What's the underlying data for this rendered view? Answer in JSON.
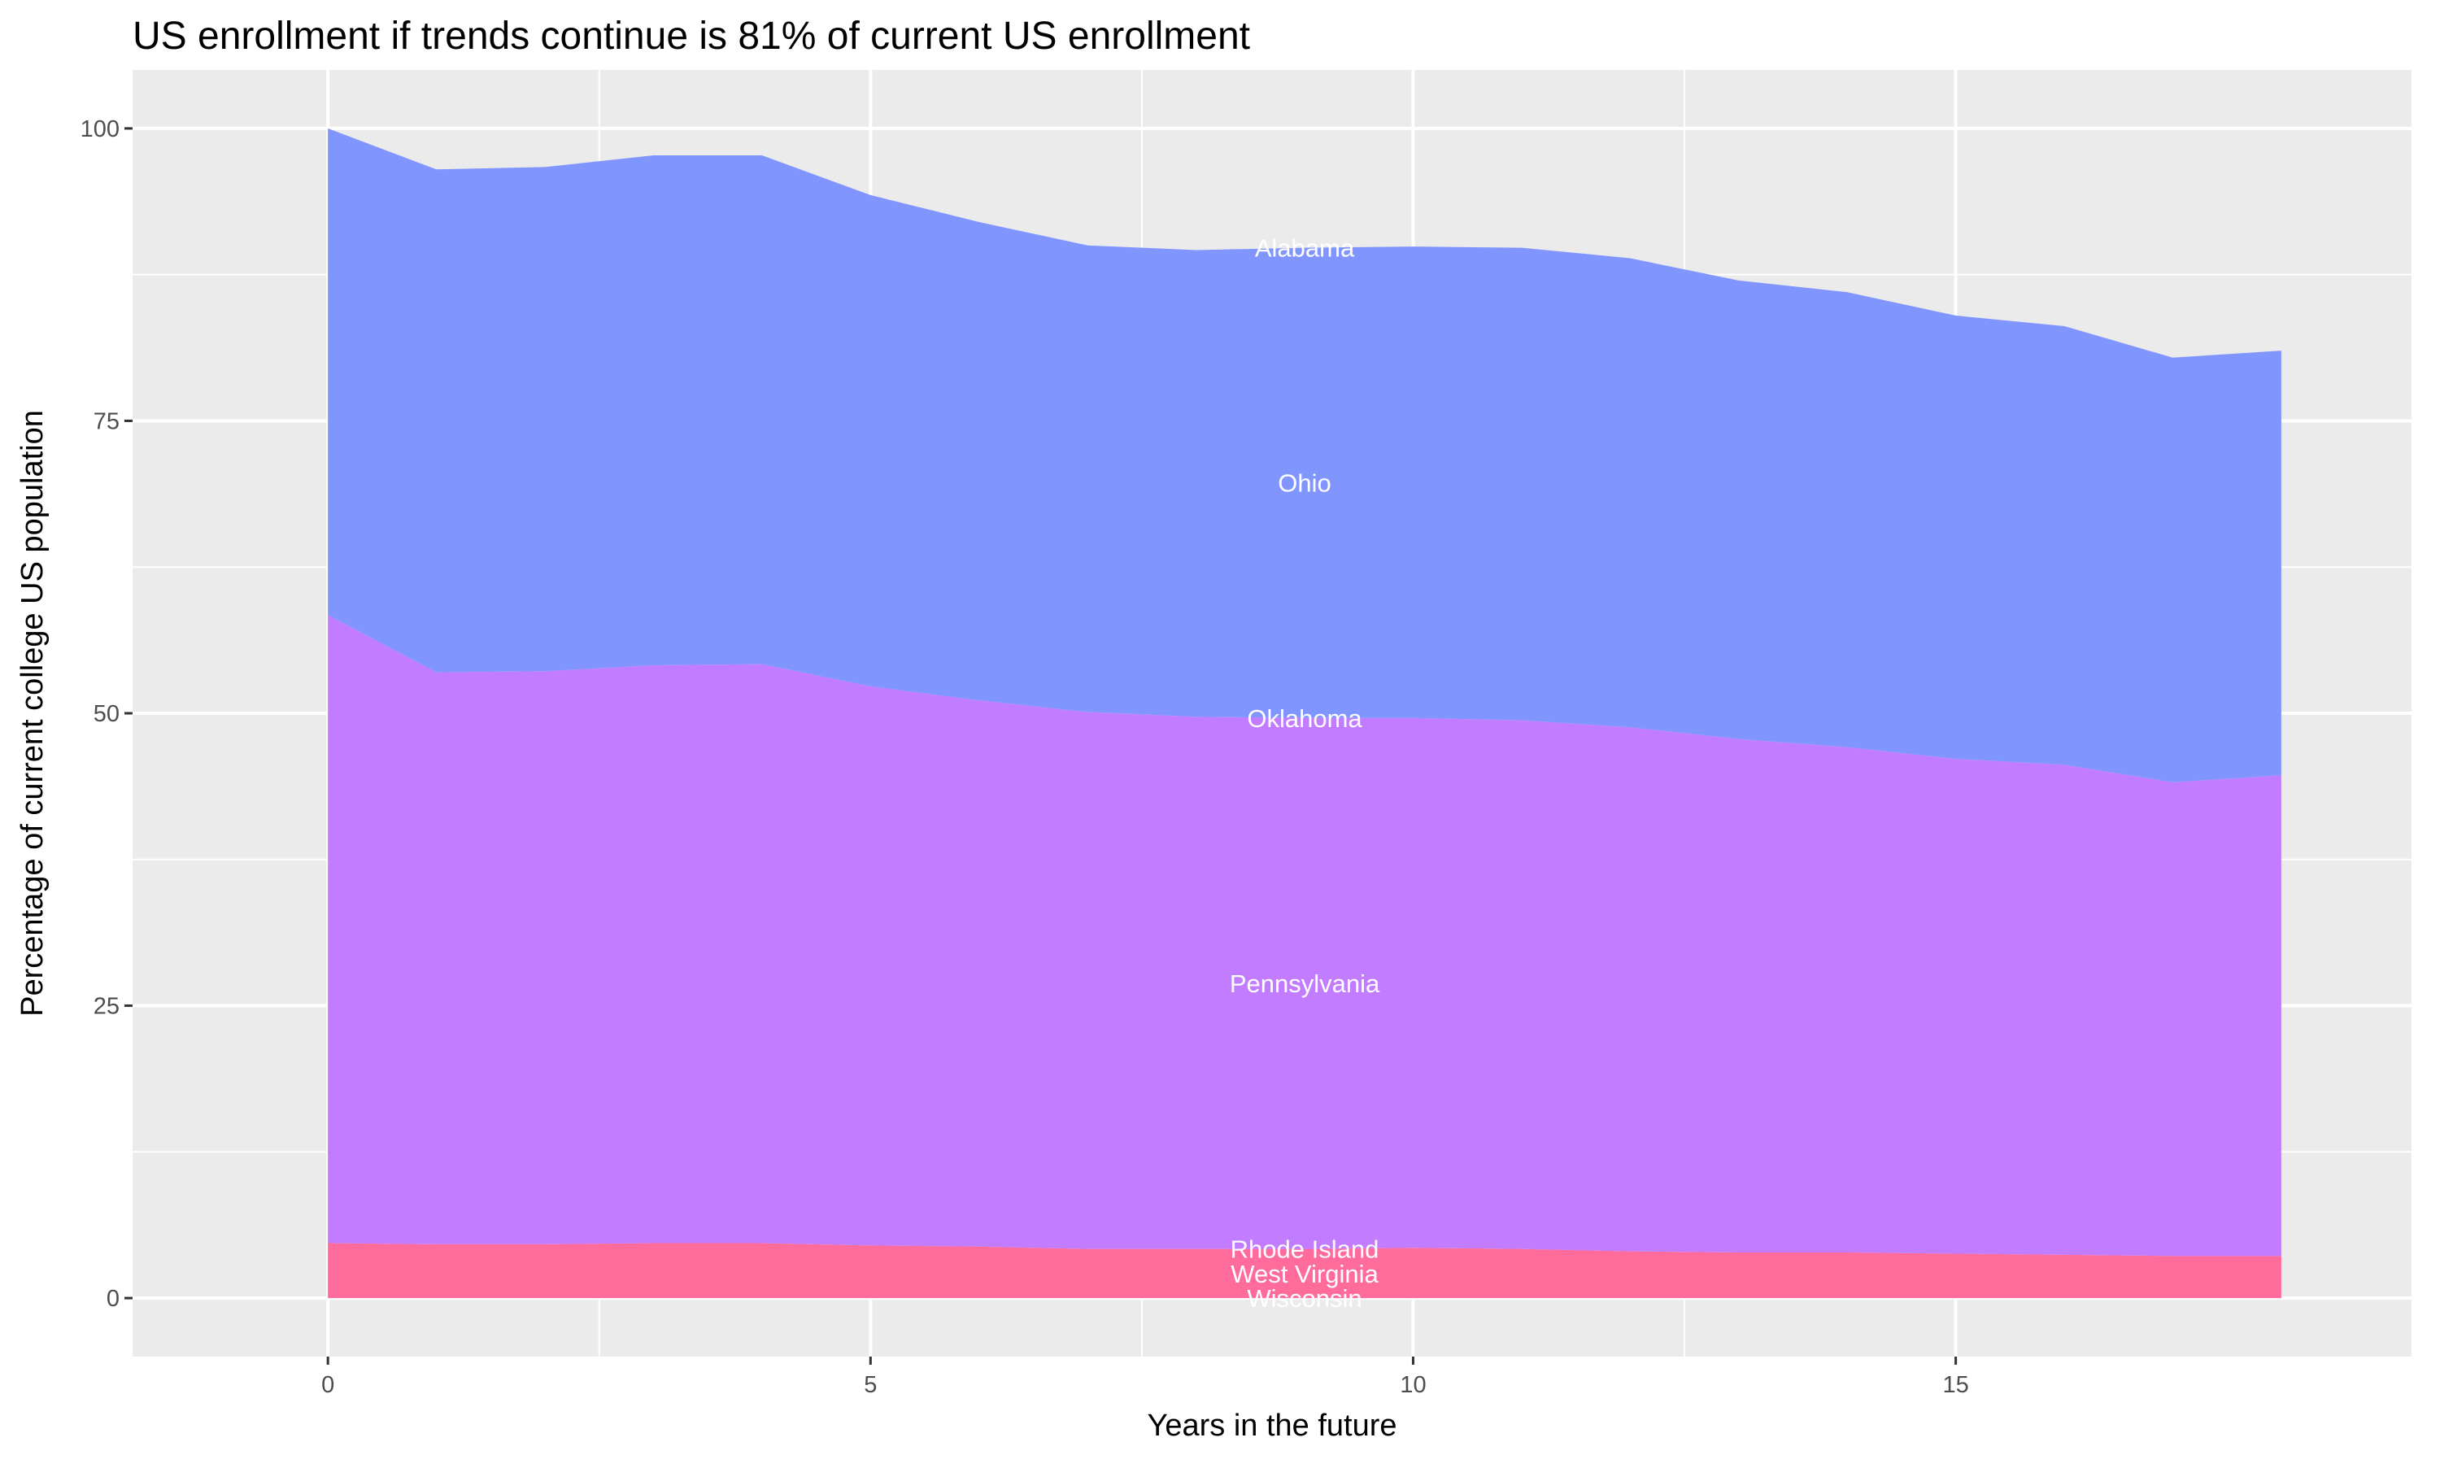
{
  "chart_data": {
    "type": "area",
    "stacked": true,
    "title": "US enrollment if trends continue is 81% of current US enrollment",
    "xlabel": "Years in the future",
    "ylabel": "Percentage of current college US population",
    "xlim": [
      -1.8,
      19.2
    ],
    "ylim": [
      -5,
      105
    ],
    "x_ticks": [
      0,
      5,
      10,
      15
    ],
    "y_ticks": [
      0,
      25,
      50,
      75,
      100
    ],
    "grid": true,
    "legend": "none",
    "label_x": 9,
    "x": [
      0,
      1,
      2,
      3,
      4,
      5,
      6,
      7,
      8,
      9,
      10,
      11,
      12,
      13,
      14,
      15,
      16,
      17,
      18
    ],
    "series": [
      {
        "name": "Wisconsin",
        "color": "#FF6C9C",
        "values": [
          0,
          0,
          0,
          0,
          0,
          0,
          0,
          0,
          0,
          0,
          0,
          0,
          0,
          0,
          0,
          0,
          0,
          0,
          0
        ]
      },
      {
        "name": "West Virginia",
        "color": "#FF6C9C",
        "values": [
          4.7,
          4.6,
          4.6,
          4.7,
          4.7,
          4.5,
          4.4,
          4.2,
          4.2,
          4.2,
          4.3,
          4.2,
          4.0,
          3.9,
          3.9,
          3.8,
          3.7,
          3.6,
          3.6
        ]
      },
      {
        "name": "Rhode Island",
        "color": "#FF6C9C",
        "values": [
          0,
          0,
          0,
          0,
          0,
          0,
          0,
          0,
          0,
          0,
          0,
          0,
          0,
          0,
          0,
          0,
          0,
          0,
          0
        ]
      },
      {
        "name": "Pennsylvania",
        "color": "#C27CFF",
        "values": [
          53.7,
          48.9,
          49.0,
          49.4,
          49.5,
          47.8,
          46.7,
          45.9,
          45.5,
          45.4,
          45.3,
          45.2,
          44.8,
          43.9,
          43.2,
          42.3,
          41.9,
          40.5,
          41.1
        ]
      },
      {
        "name": "Oklahoma",
        "color": "#C27CFF",
        "values": [
          0,
          0,
          0,
          0,
          0,
          0,
          0,
          0,
          0,
          0,
          0,
          0,
          0,
          0,
          0,
          0,
          0,
          0,
          0
        ]
      },
      {
        "name": "Ohio",
        "color": "#8195FF",
        "values": [
          41.6,
          43.0,
          43.1,
          43.6,
          43.5,
          42.0,
          40.9,
          39.9,
          39.9,
          40.2,
          40.3,
          40.4,
          40.1,
          39.2,
          38.9,
          37.9,
          37.5,
          36.3,
          36.3
        ]
      },
      {
        "name": "Alabama",
        "color": "#8195FF",
        "values": [
          0,
          0,
          0,
          0,
          0,
          0,
          0,
          0,
          0,
          0,
          0,
          0,
          0,
          0,
          0,
          0,
          0,
          0,
          0
        ]
      }
    ]
  }
}
